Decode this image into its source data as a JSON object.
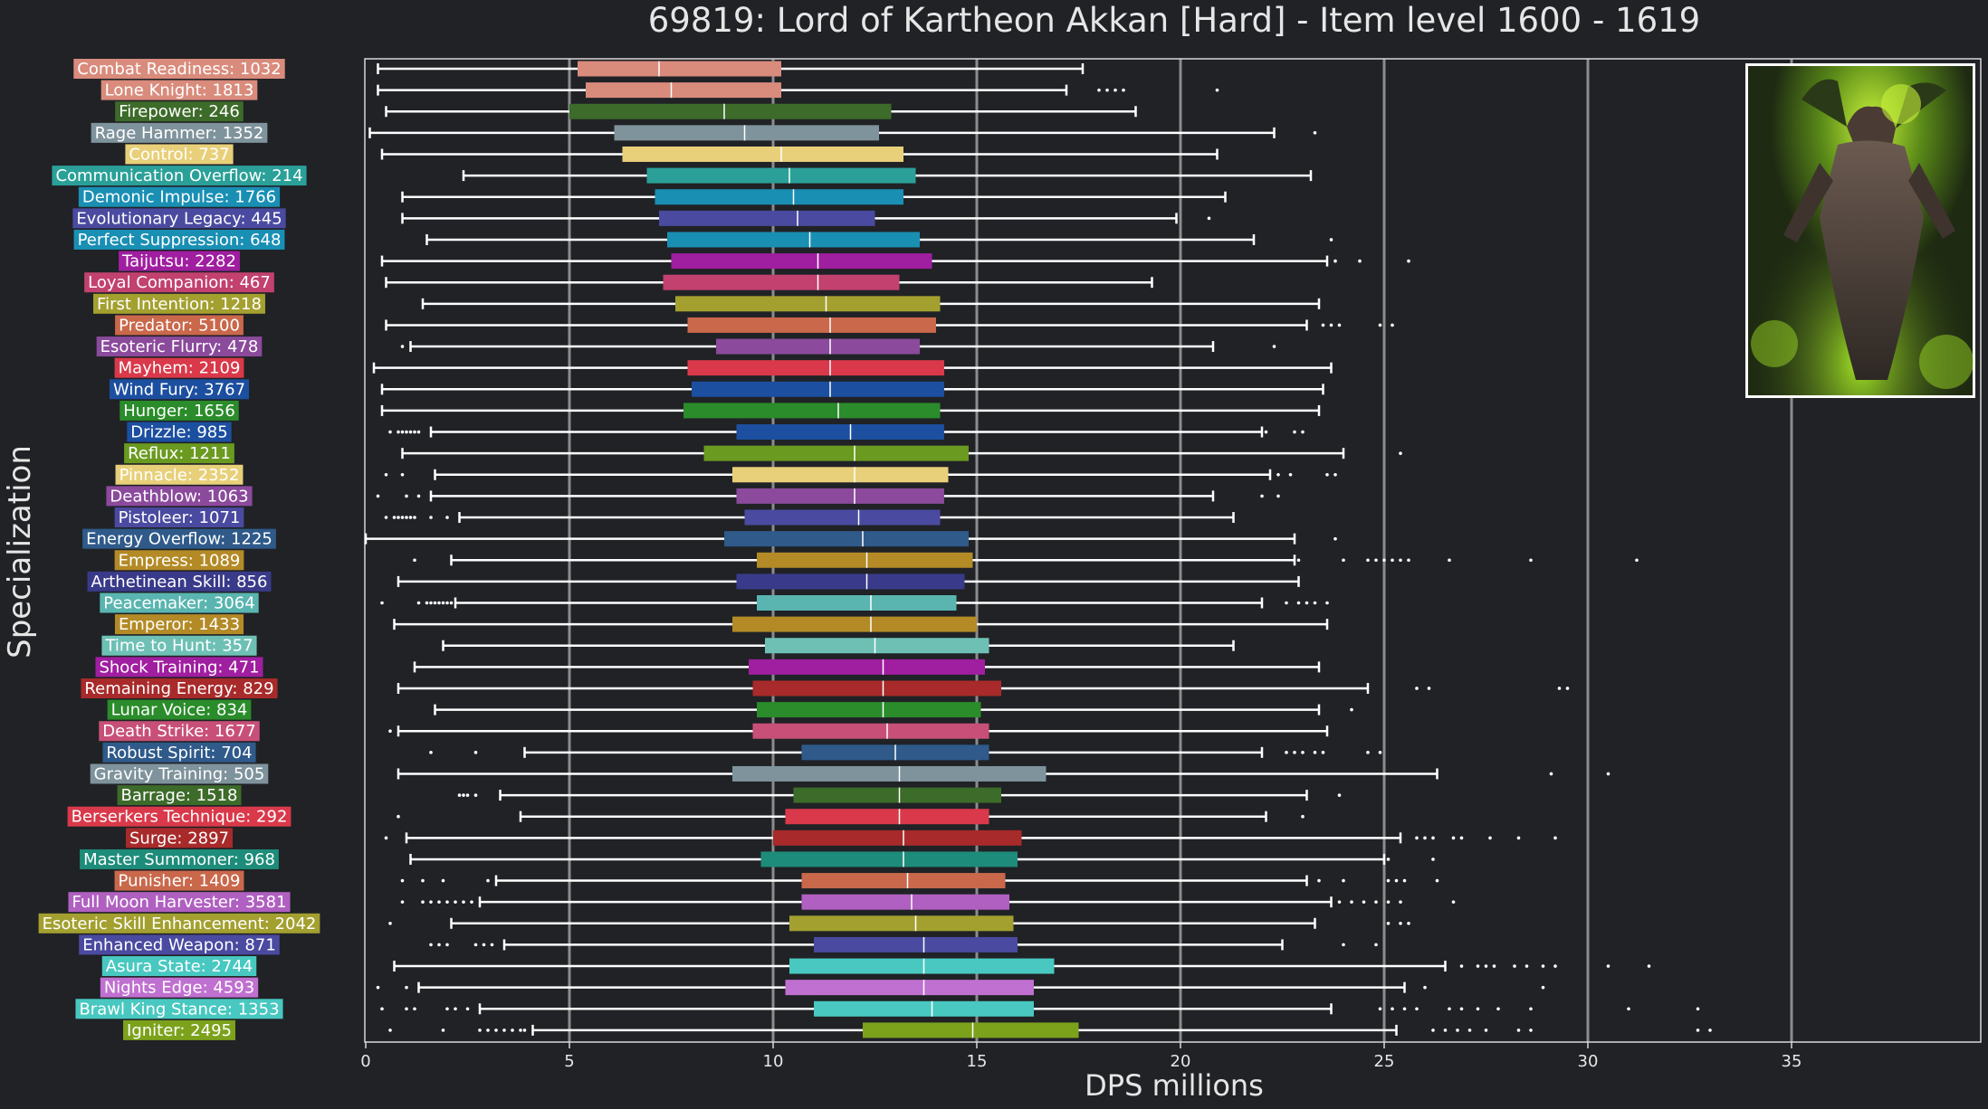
{
  "chart_data": {
    "type": "box",
    "title": "69819: Lord of Kartheon Akkan [Hard] - Item level 1600 - 1619",
    "xlabel": "DPS millions",
    "ylabel": "Specialization",
    "xlim": [
      0,
      39.7
    ],
    "xticks": [
      0,
      5,
      10,
      15,
      20,
      25,
      30,
      35
    ],
    "grid": "vertical",
    "legend": "none",
    "inset_image": "boss-portrait-top-right",
    "categories": [
      {
        "label": "Combat Readiness: 1032",
        "color": "#d98b7c",
        "stats": [
          0.3,
          5.2,
          7.2,
          10.2,
          17.6
        ],
        "outliers": []
      },
      {
        "label": "Lone Knight: 1813",
        "color": "#d98b7c",
        "stats": [
          0.3,
          5.4,
          7.5,
          10.2,
          17.2
        ],
        "outliers": [
          18.0,
          18.2,
          18.4,
          18.6,
          20.9
        ]
      },
      {
        "label": "Firepower: 246",
        "color": "#3d6b2a",
        "stats": [
          0.5,
          5.0,
          8.8,
          12.9,
          18.9
        ],
        "outliers": []
      },
      {
        "label": "Rage Hammer: 1352",
        "color": "#7f939c",
        "stats": [
          0.1,
          6.1,
          9.3,
          12.6,
          22.3
        ],
        "outliers": [
          23.3
        ]
      },
      {
        "label": "Control: 737",
        "color": "#e8d07a",
        "stats": [
          0.4,
          6.3,
          10.2,
          13.2,
          20.9
        ],
        "outliers": []
      },
      {
        "label": "Communication Overflow: 214",
        "color": "#2aa098",
        "stats": [
          2.4,
          6.9,
          10.4,
          13.5,
          23.2
        ],
        "outliers": []
      },
      {
        "label": "Demonic Impulse: 1766",
        "color": "#1a8fb4",
        "stats": [
          0.9,
          7.1,
          10.5,
          13.2,
          21.1
        ],
        "outliers": []
      },
      {
        "label": "Evolutionary Legacy: 445",
        "color": "#4a4aa0",
        "stats": [
          0.9,
          7.2,
          10.6,
          12.5,
          19.9
        ],
        "outliers": [
          20.7
        ]
      },
      {
        "label": "Perfect Suppression: 648",
        "color": "#1a8fb4",
        "stats": [
          1.5,
          7.4,
          10.9,
          13.6,
          21.8
        ],
        "outliers": [
          23.7
        ]
      },
      {
        "label": "Taijutsu: 2282",
        "color": "#a01ea0",
        "stats": [
          0.4,
          7.5,
          11.1,
          13.9,
          23.6
        ],
        "outliers": [
          23.8,
          24.4,
          25.6
        ]
      },
      {
        "label": "Loyal Companion: 467",
        "color": "#c2416f",
        "stats": [
          0.5,
          7.3,
          11.1,
          13.1,
          19.3
        ],
        "outliers": []
      },
      {
        "label": "First Intention: 1218",
        "color": "#a3a030",
        "stats": [
          1.4,
          7.6,
          11.3,
          14.1,
          23.4
        ],
        "outliers": []
      },
      {
        "label": "Predator: 5100",
        "color": "#c9684b",
        "stats": [
          0.5,
          7.9,
          11.4,
          14.0,
          23.1
        ],
        "outliers": [
          23.5,
          23.7,
          23.9,
          24.9,
          25.2
        ]
      },
      {
        "label": "Esoteric Flurry: 478",
        "color": "#8b4a9c",
        "stats": [
          1.1,
          8.6,
          11.4,
          13.6,
          20.8
        ],
        "outliers": [
          0.9,
          22.3
        ]
      },
      {
        "label": "Mayhem: 2109",
        "color": "#d9394a",
        "stats": [
          0.2,
          7.9,
          11.4,
          14.2,
          23.7
        ],
        "outliers": []
      },
      {
        "label": "Wind Fury: 3767",
        "color": "#1c4fa0",
        "stats": [
          0.4,
          8.0,
          11.4,
          14.2,
          23.5
        ],
        "outliers": []
      },
      {
        "label": "Hunger: 1656",
        "color": "#2a8c2a",
        "stats": [
          0.4,
          7.8,
          11.6,
          14.1,
          23.4
        ],
        "outliers": []
      },
      {
        "label": "Drizzle: 985",
        "color": "#1c4fa0",
        "stats": [
          1.6,
          9.1,
          11.9,
          14.2,
          22.0
        ],
        "outliers": [
          0.6,
          0.8,
          0.9,
          1.0,
          1.1,
          1.2,
          1.3,
          22.1,
          22.8,
          23.0
        ]
      },
      {
        "label": "Reflux: 1211",
        "color": "#6a9a20",
        "stats": [
          0.9,
          8.3,
          12.0,
          14.8,
          24.0
        ],
        "outliers": [
          25.4
        ]
      },
      {
        "label": "Pinnacle: 2352",
        "color": "#e8d07a",
        "stats": [
          1.7,
          9.0,
          12.0,
          14.3,
          22.2
        ],
        "outliers": [
          0.5,
          0.9,
          22.4,
          22.7,
          23.6,
          23.8
        ]
      },
      {
        "label": "Deathblow: 1063",
        "color": "#8b4a9c",
        "stats": [
          1.6,
          9.1,
          12.0,
          14.2,
          20.8
        ],
        "outliers": [
          0.3,
          1.0,
          1.3,
          22.0,
          22.4
        ]
      },
      {
        "label": "Pistoleer: 1071",
        "color": "#4a4aa0",
        "stats": [
          2.3,
          9.3,
          12.1,
          14.1,
          21.3
        ],
        "outliers": [
          0.5,
          0.7,
          0.8,
          0.9,
          1.0,
          1.1,
          1.2,
          1.6,
          2.0
        ]
      },
      {
        "label": "Energy Overflow: 1225",
        "color": "#2f5a8a",
        "stats": [
          0.0,
          8.8,
          12.2,
          14.8,
          22.8
        ],
        "outliers": [
          23.8
        ]
      },
      {
        "label": "Empress: 1089",
        "color": "#b38a26",
        "stats": [
          2.1,
          9.6,
          12.3,
          14.9,
          22.8
        ],
        "outliers": [
          1.2,
          22.9,
          24.0,
          24.6,
          24.8,
          25.0,
          25.2,
          25.4,
          25.6,
          26.6,
          28.6,
          31.2
        ]
      },
      {
        "label": "Arthetinean Skill: 856",
        "color": "#3a3a8a",
        "stats": [
          0.8,
          9.1,
          12.3,
          14.7,
          22.9
        ],
        "outliers": []
      },
      {
        "label": "Peacemaker: 3064",
        "color": "#5ab5b0",
        "stats": [
          2.2,
          9.6,
          12.4,
          14.5,
          22.0
        ],
        "outliers": [
          0.4,
          1.3,
          1.5,
          1.6,
          1.7,
          1.8,
          1.9,
          2.0,
          2.1,
          22.6,
          22.9,
          23.1,
          23.3,
          23.6
        ]
      },
      {
        "label": "Emperor: 1433",
        "color": "#b38a26",
        "stats": [
          0.7,
          9.0,
          12.4,
          15.0,
          23.6
        ],
        "outliers": []
      },
      {
        "label": "Time to Hunt: 357",
        "color": "#6ec0b5",
        "stats": [
          1.9,
          9.8,
          12.5,
          15.3,
          21.3
        ],
        "outliers": []
      },
      {
        "label": "Shock Training: 471",
        "color": "#a01ea0",
        "stats": [
          1.2,
          9.4,
          12.7,
          15.2,
          23.4
        ],
        "outliers": []
      },
      {
        "label": "Remaining Energy: 829",
        "color": "#a82a2a",
        "stats": [
          0.8,
          9.5,
          12.7,
          15.6,
          24.6
        ],
        "outliers": [
          25.8,
          26.1,
          29.3,
          29.5
        ]
      },
      {
        "label": "Lunar Voice: 834",
        "color": "#2a8c2a",
        "stats": [
          1.7,
          9.6,
          12.7,
          15.1,
          23.4
        ],
        "outliers": [
          24.2
        ]
      },
      {
        "label": "Death Strike: 1677",
        "color": "#c85078",
        "stats": [
          0.8,
          9.5,
          12.8,
          15.3,
          23.6
        ],
        "outliers": [
          0.6
        ]
      },
      {
        "label": "Robust Spirit: 704",
        "color": "#2f5a8a",
        "stats": [
          3.9,
          10.7,
          13.0,
          15.3,
          22.0
        ],
        "outliers": [
          1.6,
          2.7,
          22.6,
          22.8,
          23.0,
          23.3,
          23.5,
          24.6,
          24.9
        ]
      },
      {
        "label": "Gravity Training: 505",
        "color": "#7f939c",
        "stats": [
          0.8,
          9.0,
          13.1,
          16.7,
          26.3
        ],
        "outliers": [
          29.1,
          30.5
        ]
      },
      {
        "label": "Barrage: 1518",
        "color": "#3d6b2a",
        "stats": [
          3.3,
          10.5,
          13.1,
          15.6,
          23.1
        ],
        "outliers": [
          2.3,
          2.4,
          2.5,
          2.7,
          23.9
        ]
      },
      {
        "label": "Berserkers Technique: 292",
        "color": "#d9394a",
        "stats": [
          3.8,
          10.3,
          13.1,
          15.3,
          22.1
        ],
        "outliers": [
          0.8,
          23.0
        ]
      },
      {
        "label": "Surge: 2897",
        "color": "#a82a2a",
        "stats": [
          1.0,
          10.0,
          13.2,
          16.1,
          25.4
        ],
        "outliers": [
          0.5,
          25.8,
          26.0,
          26.2,
          26.7,
          26.9,
          27.6,
          28.3,
          29.2
        ]
      },
      {
        "label": "Master Summoner: 968",
        "color": "#1e8c7a",
        "stats": [
          1.1,
          9.7,
          13.2,
          16.0,
          25.0
        ],
        "outliers": [
          25.1,
          26.2
        ]
      },
      {
        "label": "Punisher: 1409",
        "color": "#c9684b",
        "stats": [
          3.2,
          10.7,
          13.3,
          15.7,
          23.1
        ],
        "outliers": [
          0.9,
          1.4,
          1.9,
          3.0,
          23.4,
          24.0,
          25.1,
          25.3,
          25.5,
          26.3
        ]
      },
      {
        "label": "Full Moon Harvester: 3581",
        "color": "#b060c0",
        "stats": [
          2.8,
          10.7,
          13.4,
          15.8,
          23.7
        ],
        "outliers": [
          0.9,
          1.4,
          1.6,
          1.8,
          2.0,
          2.2,
          2.4,
          2.6,
          23.9,
          24.2,
          24.5,
          24.8,
          25.1,
          25.4,
          26.7
        ]
      },
      {
        "label": "Esoteric Skill Enhancement: 2042",
        "color": "#a3a030",
        "stats": [
          2.1,
          10.4,
          13.5,
          15.9,
          23.3
        ],
        "outliers": [
          0.6,
          25.1,
          25.4,
          25.6
        ]
      },
      {
        "label": "Enhanced Weapon: 871",
        "color": "#4a4aa0",
        "stats": [
          3.4,
          11.0,
          13.7,
          16.0,
          22.5
        ],
        "outliers": [
          1.6,
          1.8,
          2.0,
          2.7,
          2.9,
          3.1,
          24.0,
          24.8
        ]
      },
      {
        "label": "Asura State: 2744",
        "color": "#48c8c0",
        "stats": [
          0.7,
          10.4,
          13.7,
          16.9,
          26.5
        ],
        "outliers": [
          26.9,
          27.3,
          27.5,
          27.7,
          28.2,
          28.5,
          28.9,
          29.2,
          30.5,
          31.5
        ]
      },
      {
        "label": "Nights Edge: 4593",
        "color": "#c070d0",
        "stats": [
          1.3,
          10.3,
          13.7,
          16.4,
          25.5
        ],
        "outliers": [
          0.3,
          1.0,
          26.0,
          28.9
        ]
      },
      {
        "label": "Brawl King Stance: 1353",
        "color": "#48c8c0",
        "stats": [
          2.8,
          11.0,
          13.9,
          16.4,
          23.7
        ],
        "outliers": [
          0.4,
          1.0,
          1.2,
          2.0,
          2.2,
          2.5,
          24.9,
          25.2,
          25.5,
          25.8,
          26.6,
          26.9,
          27.3,
          27.8,
          28.6,
          31.0,
          32.7
        ]
      },
      {
        "label": "Igniter: 2495",
        "color": "#7ca21c",
        "stats": [
          4.1,
          12.2,
          14.9,
          17.5,
          25.3
        ],
        "outliers": [
          0.6,
          1.9,
          2.8,
          3.0,
          3.2,
          3.4,
          3.6,
          3.8,
          3.9,
          26.2,
          26.5,
          26.8,
          27.1,
          27.5,
          28.3,
          28.6,
          32.7,
          33.0
        ]
      }
    ]
  }
}
